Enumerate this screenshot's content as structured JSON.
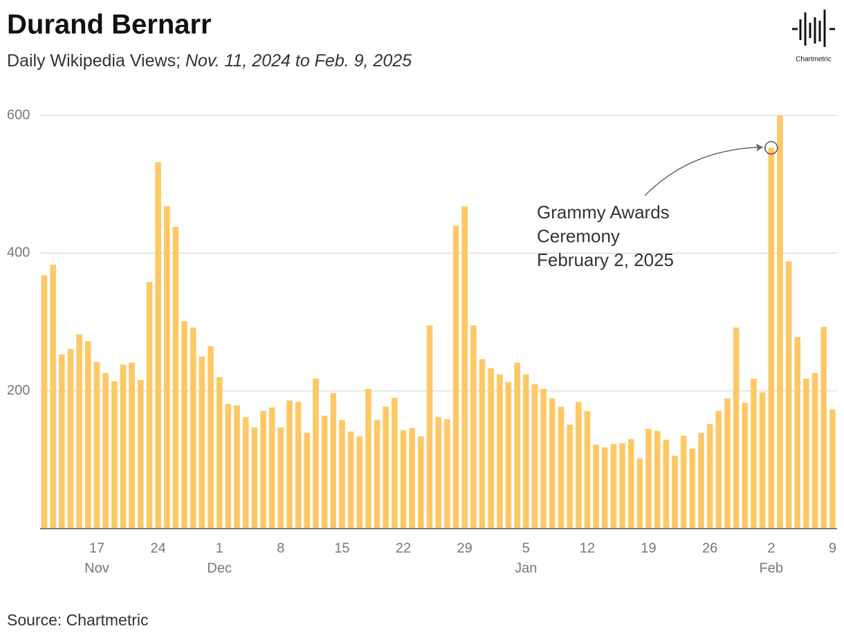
{
  "chart_data": {
    "type": "bar",
    "title": "Durand Bernarr",
    "subtitle": "Daily Wikipedia Views;",
    "subtitle_italic": "Nov. 11, 2024 to Feb. 9, 2025",
    "source": "Source: Chartmetric",
    "logo": "Chartmetric",
    "color": "#fec865",
    "grid": true,
    "ylim": [
      0,
      600
    ],
    "yticks": [
      200,
      400,
      600
    ],
    "categories": [
      null,
      null,
      null,
      null,
      null,
      null,
      "17",
      null,
      null,
      null,
      null,
      null,
      null,
      "24",
      null,
      null,
      null,
      null,
      null,
      null,
      "1",
      null,
      null,
      null,
      null,
      null,
      null,
      "8",
      null,
      null,
      null,
      null,
      null,
      null,
      "15",
      null,
      null,
      null,
      null,
      null,
      null,
      "22",
      null,
      null,
      null,
      null,
      null,
      null,
      "29",
      null,
      null,
      null,
      null,
      null,
      null,
      "5",
      null,
      null,
      null,
      null,
      null,
      null,
      "12",
      null,
      null,
      null,
      null,
      null,
      null,
      "19",
      null,
      null,
      null,
      null,
      null,
      null,
      "26",
      null,
      null,
      null,
      null,
      null,
      null,
      "2",
      null,
      null,
      null,
      null,
      null,
      null,
      "9"
    ],
    "month_labels": [
      {
        "at": 6,
        "label": "Nov"
      },
      {
        "at": 20,
        "label": "Dec"
      },
      {
        "at": 55,
        "label": "Jan"
      },
      {
        "at": 83,
        "label": "Feb"
      }
    ],
    "values": [
      368,
      383,
      253,
      261,
      282,
      272,
      242,
      226,
      214,
      238,
      241,
      216,
      358,
      532,
      468,
      438,
      301,
      292,
      250,
      265,
      220,
      181,
      179,
      162,
      147,
      171,
      176,
      147,
      186,
      184,
      139,
      218,
      164,
      197,
      158,
      141,
      134,
      203,
      158,
      177,
      190,
      143,
      146,
      134,
      295,
      162,
      159,
      440,
      468,
      295,
      246,
      233,
      224,
      213,
      241,
      224,
      210,
      203,
      189,
      177,
      151,
      184,
      171,
      122,
      118,
      123,
      124,
      130,
      102,
      145,
      142,
      129,
      106,
      135,
      116,
      139,
      152,
      171,
      189,
      292,
      183,
      218,
      198,
      553,
      600,
      388,
      278,
      218,
      226,
      293,
      173
    ],
    "annotation": {
      "at": 83,
      "lines": [
        "Grammy Awards",
        "Ceremony",
        "February 2, 2025"
      ]
    }
  }
}
